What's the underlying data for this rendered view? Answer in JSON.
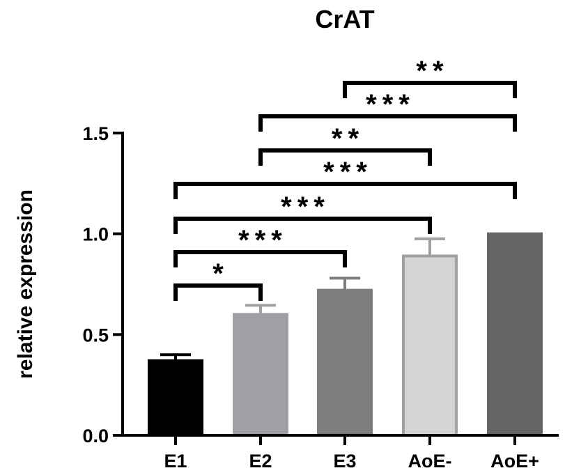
{
  "chart_data": {
    "type": "bar",
    "title": "CrAT",
    "xlabel": "",
    "ylabel": "relative expression",
    "ylim": [
      0,
      1.5
    ],
    "yticks": [
      "0.0",
      "0.5",
      "1.0",
      "1.5"
    ],
    "categories": [
      "E1",
      "E2",
      "E3",
      "AoE-",
      "AoE+"
    ],
    "values": [
      0.37,
      0.6,
      0.72,
      0.89,
      1.0
    ],
    "errors": [
      0.03,
      0.045,
      0.06,
      0.085,
      0.0
    ],
    "colors": {
      "E1": "#000000",
      "E2": "#a0a0a4",
      "E3": "#7d7d7d",
      "AoE-": "#d4d4d4",
      "AoE+": "#646464"
    },
    "bar_borders": {
      "E1": "#000000",
      "E2": "#a0a0a4",
      "E3": "#7d7d7d",
      "AoE-": "#a0a0a0",
      "AoE+": "#646464"
    },
    "significance": [
      {
        "from": "E1",
        "to": "E2",
        "label": "*"
      },
      {
        "from": "E1",
        "to": "E3",
        "label": "***"
      },
      {
        "from": "E1",
        "to": "AoE-",
        "label": "***"
      },
      {
        "from": "E1",
        "to": "AoE+",
        "label": "***"
      },
      {
        "from": "E2",
        "to": "AoE-",
        "label": "**"
      },
      {
        "from": "E2",
        "to": "AoE+",
        "label": "***"
      },
      {
        "from": "E3",
        "to": "AoE+",
        "label": "**"
      }
    ],
    "grid": false,
    "legend": "none"
  }
}
